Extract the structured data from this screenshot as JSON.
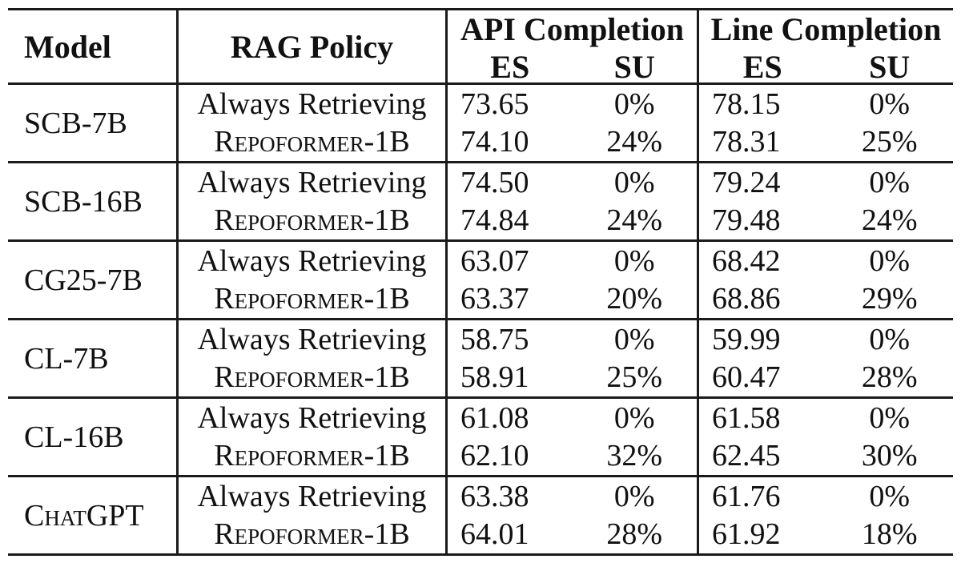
{
  "page": {
    "background": "#ffffff",
    "text_color": "#111111",
    "rule_color": "#1a1a1a"
  },
  "table": {
    "header": {
      "model": "Model",
      "rag_policy": "RAG Policy",
      "api_completion": "API Completion",
      "line_completion": "Line Completion",
      "api_es": "ES",
      "api_su": "SU",
      "line_es": "ES",
      "line_su": "SU"
    },
    "groups": [
      {
        "model": "SCB-7B",
        "rows": [
          {
            "policy": "Always Retrieving",
            "api_es": "73.65",
            "api_su": "0%",
            "line_es": "78.15",
            "line_su": "0%"
          },
          {
            "policy": "Repoformer-1B",
            "api_es": "74.10",
            "api_su": "24%",
            "line_es": "78.31",
            "line_su": "25%"
          }
        ]
      },
      {
        "model": "SCB-16B",
        "rows": [
          {
            "policy": "Always Retrieving",
            "api_es": "74.50",
            "api_su": "0%",
            "line_es": "79.24",
            "line_su": "0%"
          },
          {
            "policy": "Repoformer-1B",
            "api_es": "74.84",
            "api_su": "24%",
            "line_es": "79.48",
            "line_su": "24%"
          }
        ]
      },
      {
        "model": "CG25-7B",
        "rows": [
          {
            "policy": "Always Retrieving",
            "api_es": "63.07",
            "api_su": "0%",
            "line_es": "68.42",
            "line_su": "0%"
          },
          {
            "policy": "Repoformer-1B",
            "api_es": "63.37",
            "api_su": "20%",
            "line_es": "68.86",
            "line_su": "29%"
          }
        ]
      },
      {
        "model": "CL-7B",
        "rows": [
          {
            "policy": "Always Retrieving",
            "api_es": "58.75",
            "api_su": "0%",
            "line_es": "59.99",
            "line_su": "0%"
          },
          {
            "policy": "Repoformer-1B",
            "api_es": "58.91",
            "api_su": "25%",
            "line_es": "60.47",
            "line_su": "28%"
          }
        ]
      },
      {
        "model": "CL-16B",
        "rows": [
          {
            "policy": "Always Retrieving",
            "api_es": "61.08",
            "api_su": "0%",
            "line_es": "61.58",
            "line_su": "0%"
          },
          {
            "policy": "Repoformer-1B",
            "api_es": "62.10",
            "api_su": "32%",
            "line_es": "62.45",
            "line_su": "30%"
          }
        ]
      },
      {
        "model": "ChatGPT",
        "rows": [
          {
            "policy": "Always Retrieving",
            "api_es": "63.38",
            "api_su": "0%",
            "line_es": "61.76",
            "line_su": "0%"
          },
          {
            "policy": "Repoformer-1B",
            "api_es": "64.01",
            "api_su": "28%",
            "line_es": "61.92",
            "line_su": "18%"
          }
        ]
      }
    ]
  }
}
